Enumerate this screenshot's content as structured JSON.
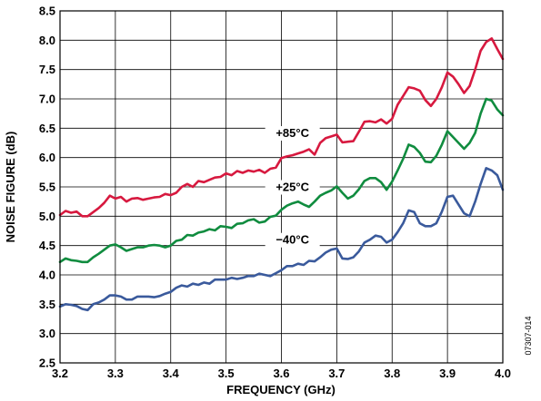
{
  "figure_id": "07307-014",
  "chart_data": {
    "type": "line",
    "xlabel": "FREQUENCY (GHz)",
    "ylabel": "NOISE FIGURE (dB)",
    "xlim": [
      3.2,
      4.0
    ],
    "ylim": [
      2.5,
      8.5
    ],
    "x_ticks": [
      "3.2",
      "3.3",
      "3.4",
      "3.5",
      "3.6",
      "3.7",
      "3.8",
      "3.9",
      "4.0"
    ],
    "y_ticks": [
      "2.5",
      "3.0",
      "3.5",
      "4.0",
      "4.5",
      "5.0",
      "5.5",
      "6.0",
      "6.5",
      "7.0",
      "7.5",
      "8.0",
      "8.5"
    ],
    "grid": true,
    "series": [
      {
        "name": "+85°C",
        "color": "#d7193f",
        "label_at": [
          3.62,
          6.35
        ],
        "points": [
          [
            3.2,
            5.02
          ],
          [
            3.21,
            5.09
          ],
          [
            3.22,
            5.06
          ],
          [
            3.23,
            5.08
          ],
          [
            3.24,
            5.0
          ],
          [
            3.25,
            5.0
          ],
          [
            3.26,
            5.07
          ],
          [
            3.27,
            5.14
          ],
          [
            3.28,
            5.23
          ],
          [
            3.29,
            5.35
          ],
          [
            3.3,
            5.3
          ],
          [
            3.31,
            5.33
          ],
          [
            3.32,
            5.25
          ],
          [
            3.33,
            5.3
          ],
          [
            3.34,
            5.31
          ],
          [
            3.35,
            5.28
          ],
          [
            3.36,
            5.3
          ],
          [
            3.37,
            5.32
          ],
          [
            3.38,
            5.33
          ],
          [
            3.39,
            5.38
          ],
          [
            3.4,
            5.36
          ],
          [
            3.41,
            5.4
          ],
          [
            3.42,
            5.5
          ],
          [
            3.43,
            5.55
          ],
          [
            3.44,
            5.5
          ],
          [
            3.45,
            5.6
          ],
          [
            3.46,
            5.58
          ],
          [
            3.47,
            5.62
          ],
          [
            3.48,
            5.66
          ],
          [
            3.49,
            5.67
          ],
          [
            3.5,
            5.73
          ],
          [
            3.51,
            5.7
          ],
          [
            3.52,
            5.77
          ],
          [
            3.53,
            5.74
          ],
          [
            3.54,
            5.78
          ],
          [
            3.55,
            5.76
          ],
          [
            3.56,
            5.79
          ],
          [
            3.57,
            5.74
          ],
          [
            3.58,
            5.81
          ],
          [
            3.59,
            5.83
          ],
          [
            3.6,
            5.99
          ],
          [
            3.61,
            6.02
          ],
          [
            3.62,
            6.04
          ],
          [
            3.63,
            6.07
          ],
          [
            3.64,
            6.1
          ],
          [
            3.65,
            6.14
          ],
          [
            3.66,
            6.05
          ],
          [
            3.67,
            6.25
          ],
          [
            3.68,
            6.33
          ],
          [
            3.69,
            6.36
          ],
          [
            3.7,
            6.39
          ],
          [
            3.71,
            6.26
          ],
          [
            3.72,
            6.27
          ],
          [
            3.73,
            6.28
          ],
          [
            3.74,
            6.44
          ],
          [
            3.75,
            6.61
          ],
          [
            3.76,
            6.62
          ],
          [
            3.77,
            6.6
          ],
          [
            3.78,
            6.65
          ],
          [
            3.79,
            6.58
          ],
          [
            3.8,
            6.66
          ],
          [
            3.81,
            6.9
          ],
          [
            3.82,
            7.05
          ],
          [
            3.83,
            7.2
          ],
          [
            3.84,
            7.18
          ],
          [
            3.85,
            7.14
          ],
          [
            3.86,
            6.98
          ],
          [
            3.87,
            6.88
          ],
          [
            3.88,
            7.0
          ],
          [
            3.89,
            7.2
          ],
          [
            3.9,
            7.45
          ],
          [
            3.91,
            7.38
          ],
          [
            3.92,
            7.25
          ],
          [
            3.93,
            7.1
          ],
          [
            3.94,
            7.22
          ],
          [
            3.95,
            7.5
          ],
          [
            3.96,
            7.82
          ],
          [
            3.97,
            7.97
          ],
          [
            3.98,
            8.03
          ],
          [
            3.99,
            7.85
          ],
          [
            4.0,
            7.68
          ]
        ]
      },
      {
        "name": "+25°C",
        "color": "#108c3f",
        "label_at": [
          3.62,
          5.43
        ],
        "points": [
          [
            3.2,
            4.22
          ],
          [
            3.21,
            4.28
          ],
          [
            3.22,
            4.25
          ],
          [
            3.23,
            4.24
          ],
          [
            3.24,
            4.22
          ],
          [
            3.25,
            4.22
          ],
          [
            3.26,
            4.3
          ],
          [
            3.27,
            4.36
          ],
          [
            3.28,
            4.43
          ],
          [
            3.29,
            4.5
          ],
          [
            3.3,
            4.52
          ],
          [
            3.31,
            4.47
          ],
          [
            3.32,
            4.41
          ],
          [
            3.33,
            4.44
          ],
          [
            3.34,
            4.47
          ],
          [
            3.35,
            4.47
          ],
          [
            3.36,
            4.5
          ],
          [
            3.37,
            4.51
          ],
          [
            3.38,
            4.5
          ],
          [
            3.39,
            4.47
          ],
          [
            3.4,
            4.5
          ],
          [
            3.41,
            4.58
          ],
          [
            3.42,
            4.6
          ],
          [
            3.43,
            4.68
          ],
          [
            3.44,
            4.67
          ],
          [
            3.45,
            4.72
          ],
          [
            3.46,
            4.74
          ],
          [
            3.47,
            4.78
          ],
          [
            3.48,
            4.76
          ],
          [
            3.49,
            4.83
          ],
          [
            3.5,
            4.82
          ],
          [
            3.51,
            4.8
          ],
          [
            3.52,
            4.87
          ],
          [
            3.53,
            4.88
          ],
          [
            3.54,
            4.93
          ],
          [
            3.55,
            4.95
          ],
          [
            3.56,
            4.89
          ],
          [
            3.57,
            4.91
          ],
          [
            3.58,
            4.99
          ],
          [
            3.59,
            5.01
          ],
          [
            3.6,
            5.11
          ],
          [
            3.61,
            5.18
          ],
          [
            3.62,
            5.22
          ],
          [
            3.63,
            5.25
          ],
          [
            3.64,
            5.2
          ],
          [
            3.65,
            5.16
          ],
          [
            3.66,
            5.25
          ],
          [
            3.67,
            5.35
          ],
          [
            3.68,
            5.4
          ],
          [
            3.69,
            5.44
          ],
          [
            3.7,
            5.51
          ],
          [
            3.71,
            5.4
          ],
          [
            3.72,
            5.3
          ],
          [
            3.73,
            5.35
          ],
          [
            3.74,
            5.46
          ],
          [
            3.75,
            5.6
          ],
          [
            3.76,
            5.65
          ],
          [
            3.77,
            5.65
          ],
          [
            3.78,
            5.58
          ],
          [
            3.79,
            5.45
          ],
          [
            3.8,
            5.59
          ],
          [
            3.81,
            5.78
          ],
          [
            3.82,
            5.98
          ],
          [
            3.83,
            6.22
          ],
          [
            3.84,
            6.18
          ],
          [
            3.85,
            6.08
          ],
          [
            3.86,
            5.93
          ],
          [
            3.87,
            5.92
          ],
          [
            3.88,
            6.03
          ],
          [
            3.89,
            6.22
          ],
          [
            3.9,
            6.45
          ],
          [
            3.91,
            6.35
          ],
          [
            3.92,
            6.25
          ],
          [
            3.93,
            6.15
          ],
          [
            3.94,
            6.25
          ],
          [
            3.95,
            6.42
          ],
          [
            3.96,
            6.75
          ],
          [
            3.97,
            7.0
          ],
          [
            3.98,
            6.97
          ],
          [
            3.99,
            6.82
          ],
          [
            4.0,
            6.72
          ]
        ]
      },
      {
        "name": "−40°C",
        "color": "#3a5a9c",
        "label_at": [
          3.62,
          4.53
        ],
        "points": [
          [
            3.2,
            3.46
          ],
          [
            3.21,
            3.5
          ],
          [
            3.22,
            3.49
          ],
          [
            3.23,
            3.47
          ],
          [
            3.24,
            3.42
          ],
          [
            3.25,
            3.4
          ],
          [
            3.26,
            3.5
          ],
          [
            3.27,
            3.53
          ],
          [
            3.28,
            3.58
          ],
          [
            3.29,
            3.65
          ],
          [
            3.3,
            3.65
          ],
          [
            3.31,
            3.63
          ],
          [
            3.32,
            3.58
          ],
          [
            3.33,
            3.58
          ],
          [
            3.34,
            3.63
          ],
          [
            3.35,
            3.63
          ],
          [
            3.36,
            3.63
          ],
          [
            3.37,
            3.62
          ],
          [
            3.38,
            3.64
          ],
          [
            3.39,
            3.68
          ],
          [
            3.4,
            3.71
          ],
          [
            3.41,
            3.78
          ],
          [
            3.42,
            3.82
          ],
          [
            3.43,
            3.8
          ],
          [
            3.44,
            3.85
          ],
          [
            3.45,
            3.83
          ],
          [
            3.46,
            3.87
          ],
          [
            3.47,
            3.85
          ],
          [
            3.48,
            3.92
          ],
          [
            3.49,
            3.92
          ],
          [
            3.5,
            3.92
          ],
          [
            3.51,
            3.95
          ],
          [
            3.52,
            3.93
          ],
          [
            3.53,
            3.95
          ],
          [
            3.54,
            3.98
          ],
          [
            3.55,
            3.98
          ],
          [
            3.56,
            4.02
          ],
          [
            3.57,
            4.0
          ],
          [
            3.58,
            3.98
          ],
          [
            3.59,
            4.03
          ],
          [
            3.6,
            4.08
          ],
          [
            3.61,
            4.15
          ],
          [
            3.62,
            4.15
          ],
          [
            3.63,
            4.19
          ],
          [
            3.64,
            4.17
          ],
          [
            3.65,
            4.24
          ],
          [
            3.66,
            4.23
          ],
          [
            3.67,
            4.3
          ],
          [
            3.68,
            4.38
          ],
          [
            3.69,
            4.43
          ],
          [
            3.7,
            4.45
          ],
          [
            3.71,
            4.28
          ],
          [
            3.72,
            4.27
          ],
          [
            3.73,
            4.3
          ],
          [
            3.74,
            4.4
          ],
          [
            3.75,
            4.55
          ],
          [
            3.76,
            4.6
          ],
          [
            3.77,
            4.67
          ],
          [
            3.78,
            4.65
          ],
          [
            3.79,
            4.55
          ],
          [
            3.8,
            4.6
          ],
          [
            3.81,
            4.73
          ],
          [
            3.82,
            4.88
          ],
          [
            3.83,
            5.1
          ],
          [
            3.84,
            5.07
          ],
          [
            3.85,
            4.88
          ],
          [
            3.86,
            4.83
          ],
          [
            3.87,
            4.83
          ],
          [
            3.88,
            4.88
          ],
          [
            3.89,
            5.08
          ],
          [
            3.9,
            5.33
          ],
          [
            3.91,
            5.35
          ],
          [
            3.92,
            5.2
          ],
          [
            3.93,
            5.05
          ],
          [
            3.94,
            5.0
          ],
          [
            3.95,
            5.25
          ],
          [
            3.96,
            5.55
          ],
          [
            3.97,
            5.82
          ],
          [
            3.98,
            5.78
          ],
          [
            3.99,
            5.7
          ],
          [
            4.0,
            5.45
          ]
        ]
      }
    ]
  }
}
